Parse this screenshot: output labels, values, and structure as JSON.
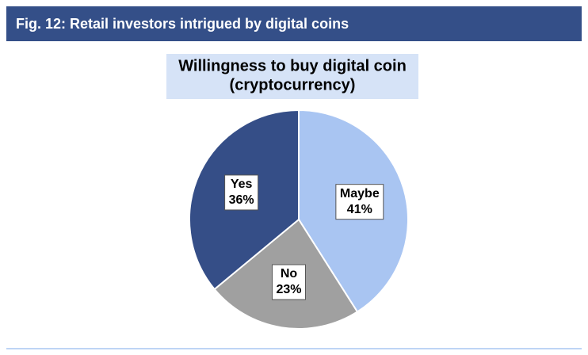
{
  "header": {
    "title": "Fig. 12: Retail investors intrigued by digital coins"
  },
  "chart_data": {
    "type": "pie",
    "title": [
      "Willingness to buy digital coin",
      "(cryptocurrency)"
    ],
    "categories": [
      "Maybe",
      "No",
      "Yes"
    ],
    "values": [
      41,
      23,
      36
    ],
    "value_labels": [
      "41%",
      "23%",
      "36%"
    ],
    "colors": [
      "#a9c5f2",
      "#a0a0a0",
      "#354e87"
    ]
  }
}
